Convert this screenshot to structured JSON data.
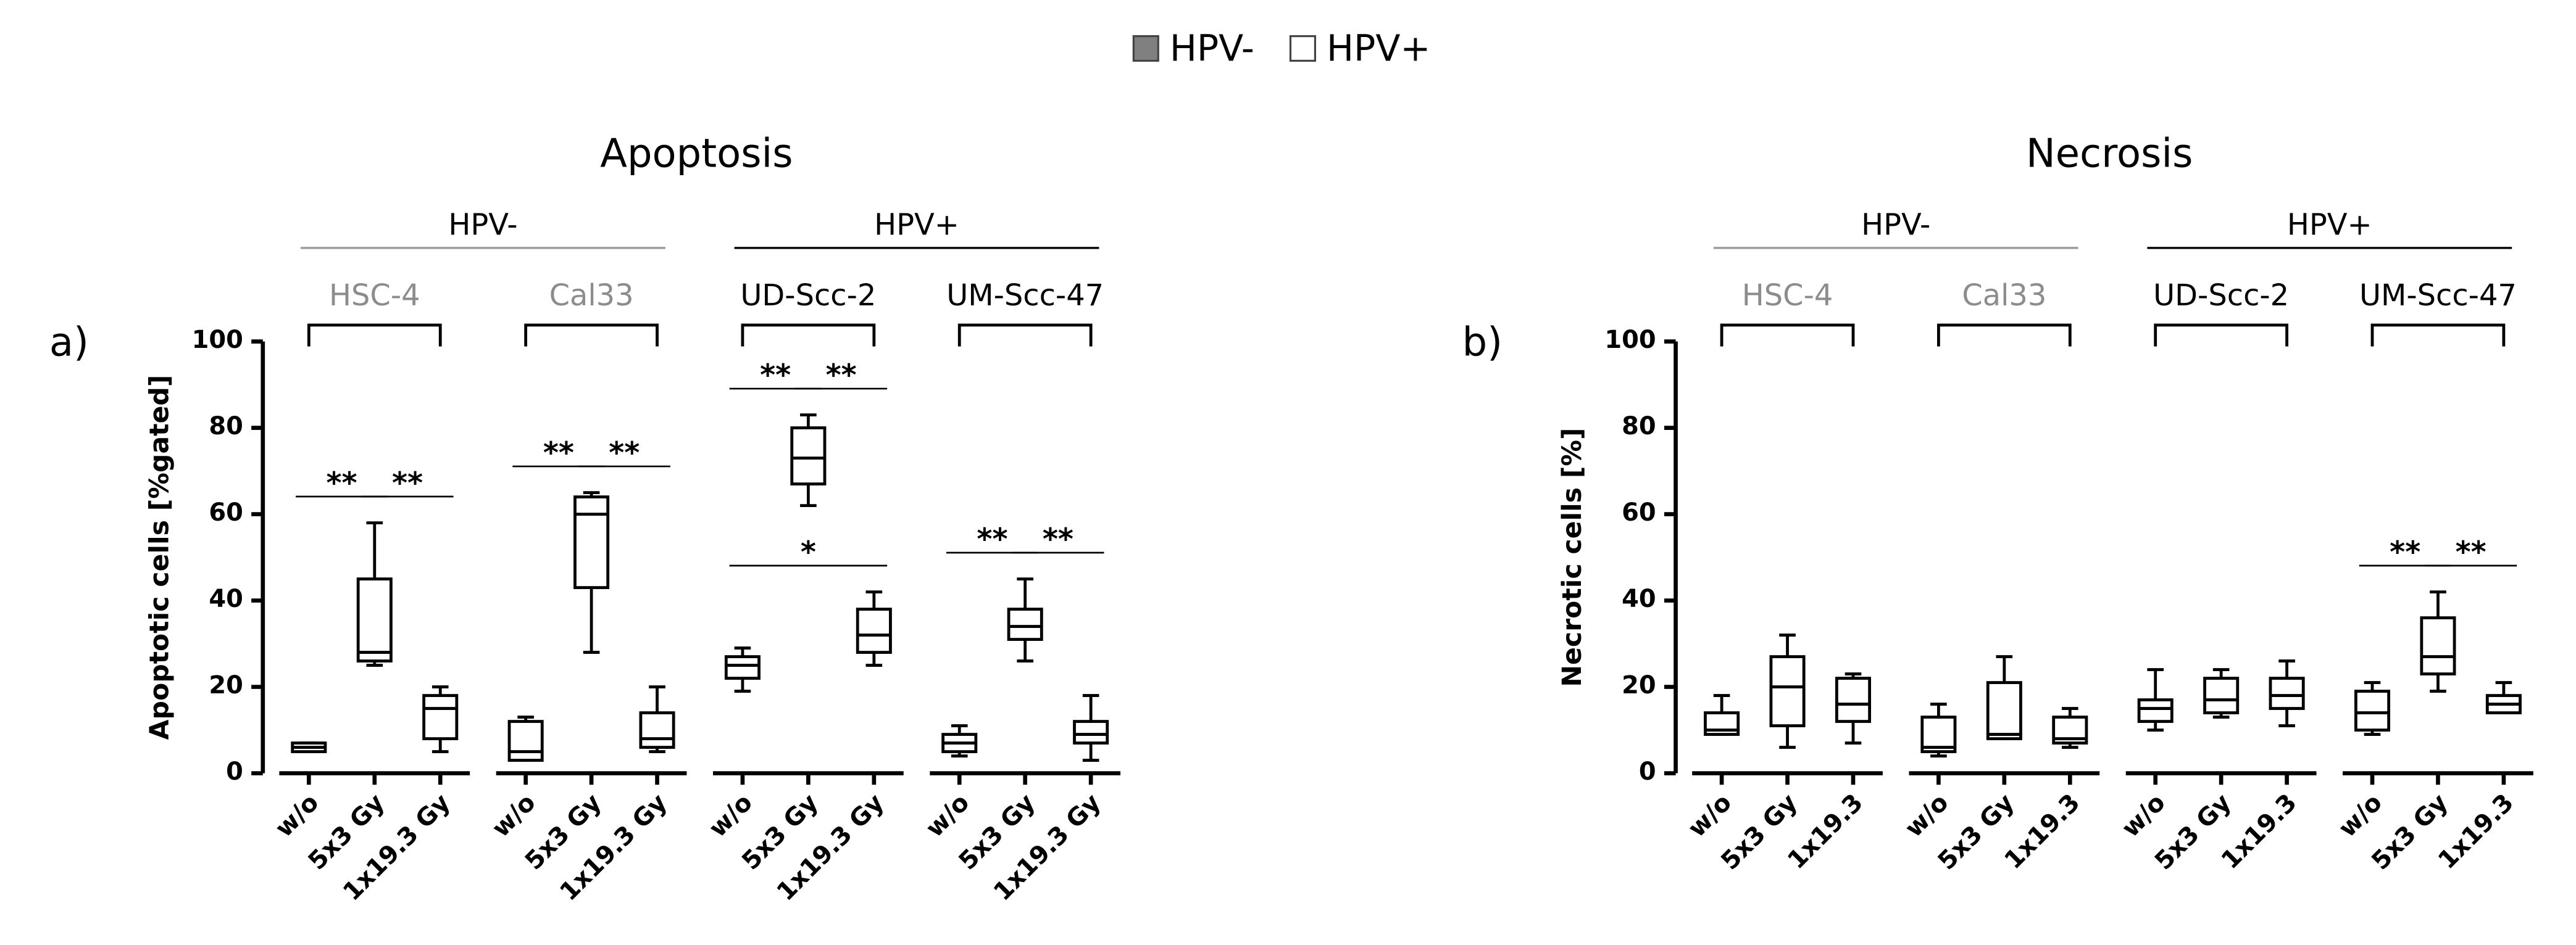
{
  "legend": [
    {
      "name": "HPV-",
      "color": "#808080"
    },
    {
      "name": "HPV+",
      "color": "#ffffff"
    }
  ],
  "chart_data": [
    {
      "type": "box",
      "panel": "a)",
      "title": "Apoptosis",
      "y_label": "Apoptotic cells [%gated]",
      "ylim": [
        0,
        100
      ],
      "yticks": [
        0,
        20,
        40,
        60,
        80,
        100
      ],
      "groups": [
        {
          "name": "HPV-",
          "color": "#999999",
          "lines": [
            {
              "name": "HSC-4",
              "color": "#8c8c8c",
              "categories": [
                "w/o",
                "5x3 Gy",
                "1x19.3 Gy"
              ],
              "boxes": [
                [
                  5,
                  5,
                  6,
                  7,
                  7
                ],
                [
                  25,
                  26,
                  28,
                  45,
                  58
                ],
                [
                  5,
                  8,
                  15,
                  18,
                  20
                ]
              ],
              "significance": [
                {
                  "label": "**",
                  "between": [
                    0,
                    1
                  ]
                },
                {
                  "label": "**",
                  "between": [
                    1,
                    2
                  ]
                }
              ]
            },
            {
              "name": "Cal33",
              "color": "#8c8c8c",
              "categories": [
                "w/o",
                "5x3 Gy",
                "1x19.3 Gy"
              ],
              "boxes": [
                [
                  3,
                  3,
                  5,
                  12,
                  13
                ],
                [
                  28,
                  43,
                  60,
                  64,
                  65
                ],
                [
                  5,
                  6,
                  8,
                  14,
                  20
                ]
              ],
              "significance": [
                {
                  "label": "**",
                  "between": [
                    0,
                    1
                  ]
                },
                {
                  "label": "**",
                  "between": [
                    1,
                    2
                  ]
                }
              ]
            }
          ]
        },
        {
          "name": "HPV+",
          "color": "#000000",
          "lines": [
            {
              "name": "UD-Scc-2",
              "color": "#000000",
              "categories": [
                "w/o",
                "5x3 Gy",
                "1x19.3 Gy"
              ],
              "boxes": [
                [
                  19,
                  22,
                  25,
                  27,
                  29
                ],
                [
                  62,
                  67,
                  73,
                  80,
                  83
                ],
                [
                  25,
                  28,
                  32,
                  38,
                  42
                ]
              ],
              "significance": [
                {
                  "label": "**",
                  "between": [
                    0,
                    1
                  ]
                },
                {
                  "label": "**",
                  "between": [
                    1,
                    2
                  ]
                },
                {
                  "label": "*",
                  "between": [
                    0,
                    2
                  ]
                }
              ]
            },
            {
              "name": "UM-Scc-47",
              "color": "#000000",
              "categories": [
                "w/o",
                "5x3 Gy",
                "1x19.3 Gy"
              ],
              "boxes": [
                [
                  4,
                  5,
                  7,
                  9,
                  11
                ],
                [
                  26,
                  31,
                  34,
                  38,
                  45
                ],
                [
                  3,
                  7,
                  9,
                  12,
                  18
                ]
              ],
              "significance": [
                {
                  "label": "**",
                  "between": [
                    0,
                    1
                  ]
                },
                {
                  "label": "**",
                  "between": [
                    1,
                    2
                  ]
                }
              ]
            }
          ]
        }
      ]
    },
    {
      "type": "box",
      "panel": "b)",
      "title": "Necrosis",
      "y_label": "Necrotic cells [%]",
      "ylim": [
        0,
        100
      ],
      "yticks": [
        0,
        20,
        40,
        60,
        80,
        100
      ],
      "groups": [
        {
          "name": "HPV-",
          "color": "#999999",
          "lines": [
            {
              "name": "HSC-4",
              "color": "#8c8c8c",
              "categories": [
                "w/o",
                "5x3 Gy",
                "1x19.3"
              ],
              "boxes": [
                [
                  9,
                  9,
                  10,
                  14,
                  18
                ],
                [
                  6,
                  11,
                  20,
                  27,
                  32
                ],
                [
                  7,
                  12,
                  16,
                  22,
                  23
                ]
              ],
              "significance": []
            },
            {
              "name": "Cal33",
              "color": "#8c8c8c",
              "categories": [
                "w/o",
                "5x3 Gy",
                "1x19.3"
              ],
              "boxes": [
                [
                  4,
                  5,
                  6,
                  13,
                  16
                ],
                [
                  8,
                  8,
                  9,
                  21,
                  27
                ],
                [
                  6,
                  7,
                  8,
                  13,
                  15
                ]
              ],
              "significance": []
            }
          ]
        },
        {
          "name": "HPV+",
          "color": "#000000",
          "lines": [
            {
              "name": "UD-Scc-2",
              "color": "#000000",
              "categories": [
                "w/o",
                "5x3 Gy",
                "1x19.3"
              ],
              "boxes": [
                [
                  10,
                  12,
                  15,
                  17,
                  24
                ],
                [
                  13,
                  14,
                  17,
                  22,
                  24
                ],
                [
                  11,
                  15,
                  18,
                  22,
                  26
                ]
              ],
              "significance": []
            },
            {
              "name": "UM-Scc-47",
              "color": "#000000",
              "categories": [
                "w/o",
                "5x3 Gy",
                "1x19.3"
              ],
              "boxes": [
                [
                  9,
                  10,
                  14,
                  19,
                  21
                ],
                [
                  19,
                  23,
                  27,
                  36,
                  42
                ],
                [
                  14,
                  14,
                  16,
                  18,
                  21
                ]
              ],
              "significance": [
                {
                  "label": "**",
                  "between": [
                    0,
                    1
                  ]
                },
                {
                  "label": "**",
                  "between": [
                    1,
                    2
                  ]
                }
              ]
            }
          ]
        }
      ]
    }
  ]
}
